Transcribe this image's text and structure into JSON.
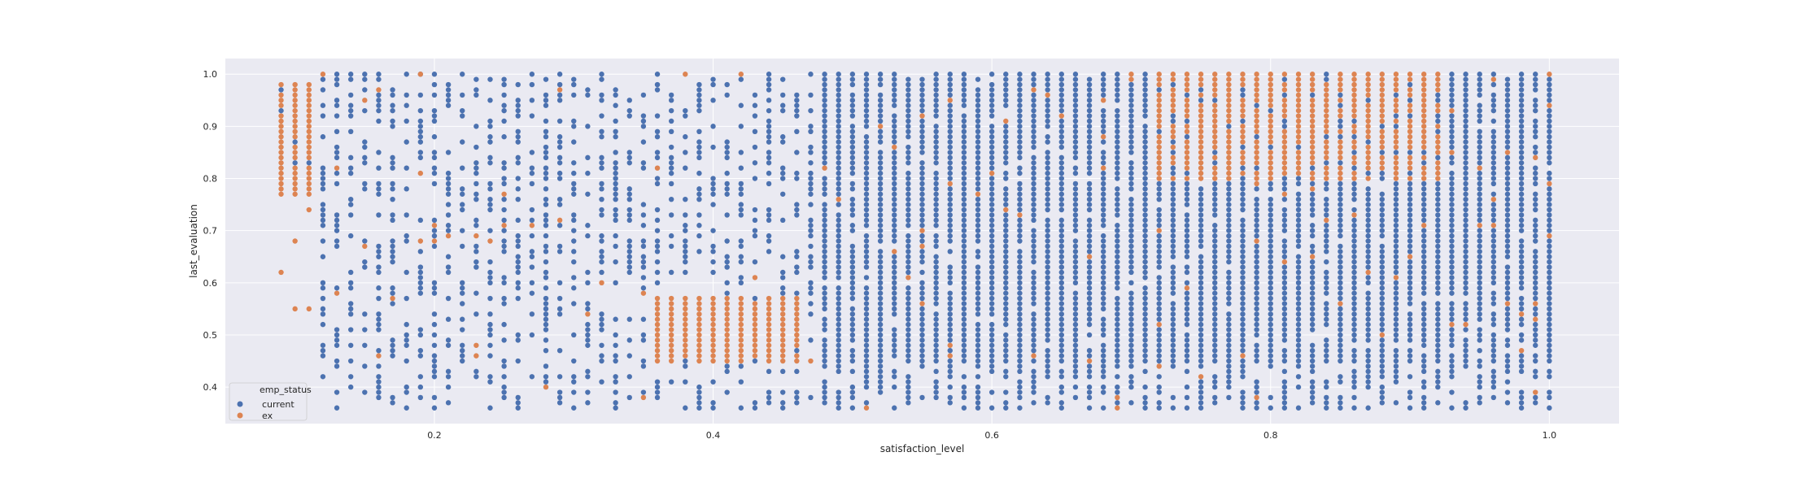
{
  "chart_data": {
    "type": "scatter",
    "title": "",
    "xlabel": "satisfaction_level",
    "ylabel": "last_evaluation",
    "xlim": [
      0.05,
      1.05
    ],
    "ylim": [
      0.33,
      1.03
    ],
    "xticks": [
      "0.2",
      "0.4",
      "0.6",
      "0.8",
      "1.0"
    ],
    "yticks": [
      "0.4",
      "0.5",
      "0.6",
      "0.7",
      "0.8",
      "0.9",
      "1.0"
    ],
    "grid": true,
    "background": "#eaeaf2",
    "legend": {
      "title": "emp_status",
      "placement": "lower-left"
    },
    "series": [
      {
        "name": "current",
        "color": "#4c72b0"
      },
      {
        "name": "ex",
        "color": "#dd8452"
      }
    ],
    "clusters": [
      {
        "series": "ex",
        "x_range": [
          0.09,
          0.11
        ],
        "y_range": [
          0.77,
          0.98
        ],
        "note_ex_only": true
      },
      {
        "series": "ex",
        "x_range": [
          0.36,
          0.46
        ],
        "y_range": [
          0.45,
          0.57
        ]
      },
      {
        "series": "ex",
        "x_range": [
          0.72,
          0.92
        ],
        "y_range": [
          0.8,
          1.0
        ]
      }
    ],
    "extra_ex_points": [
      {
        "x": 0.09,
        "y": 0.62
      },
      {
        "x": 0.1,
        "y": 0.68
      },
      {
        "x": 0.1,
        "y": 0.55
      },
      {
        "x": 0.11,
        "y": 0.55
      },
      {
        "x": 0.11,
        "y": 0.74
      },
      {
        "x": 0.12,
        "y": 1.0
      },
      {
        "x": 0.19,
        "y": 1.0
      },
      {
        "x": 0.38,
        "y": 1.0
      },
      {
        "x": 0.42,
        "y": 1.0
      }
    ],
    "current_density": [
      {
        "x_range": [
          0.12,
          0.47
        ],
        "y_range": [
          0.36,
          1.0
        ],
        "density": "sparse"
      },
      {
        "x_range": [
          0.48,
          1.0
        ],
        "y_range": [
          0.36,
          1.0
        ],
        "density": "dense"
      }
    ]
  }
}
